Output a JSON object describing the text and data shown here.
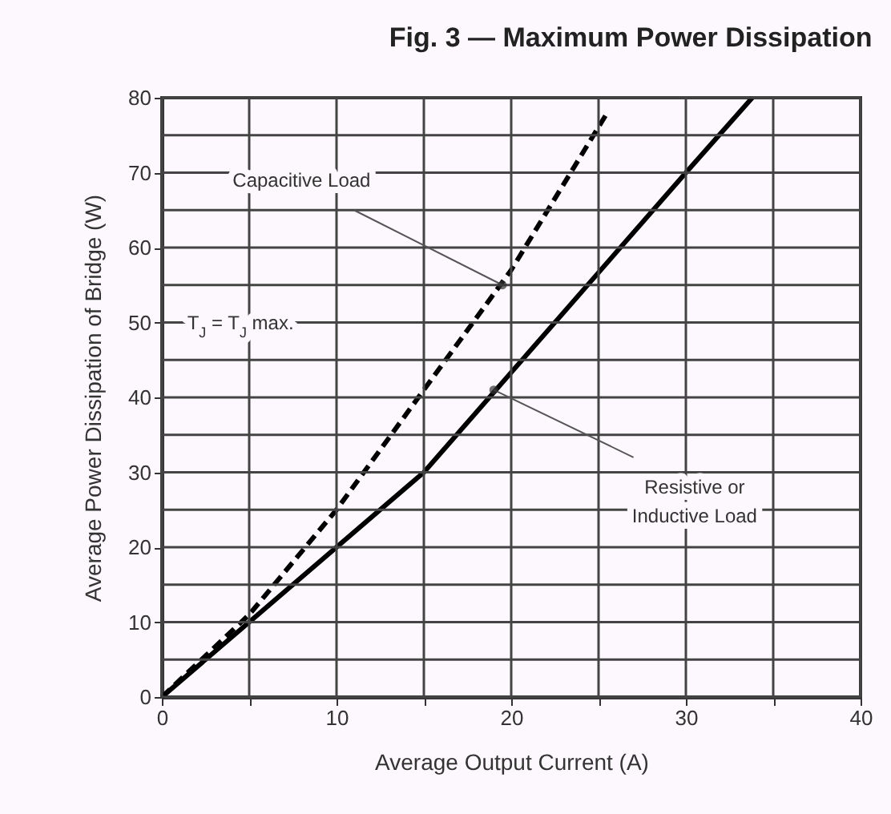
{
  "chart_data": {
    "type": "line",
    "title": "Fig. 3 — Maximum Power Dissipation",
    "xlabel": "Average Output Current (A)",
    "ylabel": "Average Power Dissipation of Bridge (W)",
    "series": [
      {
        "color": "#000000",
        "line_style": "dashed",
        "x": [
          0,
          5,
          10,
          15,
          20,
          25.5
        ],
        "values": [
          0,
          11,
          25,
          41,
          57,
          78
        ]
      },
      {
        "color": "#000000",
        "line_style": "solid",
        "x": [
          0,
          15,
          30,
          33.8
        ],
        "values": [
          0,
          30,
          70,
          80
        ]
      }
    ],
    "xlim": [
      0,
      40
    ],
    "ylim": [
      0,
      80
    ],
    "xticks": [
      0,
      {
        "value": 5,
        "label": null
      },
      10,
      {
        "value": 15,
        "label": null
      },
      20,
      {
        "value": 25,
        "label": null
      },
      30,
      {
        "value": 35,
        "label": null
      },
      40
    ],
    "yticks": [
      0,
      {
        "value": 5,
        "label": null
      },
      10,
      {
        "value": 15,
        "label": null
      },
      20,
      {
        "value": 25,
        "label": null
      },
      30,
      {
        "value": 35,
        "label": null
      },
      40,
      {
        "value": 45,
        "label": null
      },
      50,
      {
        "value": 55,
        "label": null
      },
      60,
      {
        "value": 65,
        "label": null
      },
      70,
      {
        "value": 75,
        "label": null
      },
      80
    ],
    "grid": true,
    "marker": "none",
    "annotations": [
      {
        "text": "Capacitive Load",
        "x": 19.5,
        "y": 55
      },
      "T$_{J}$ = T$_{J}$ max.",
      {
        "text": "Resistive or\nInductive Load",
        "x": 19,
        "y": 41
      }
    ]
  }
}
